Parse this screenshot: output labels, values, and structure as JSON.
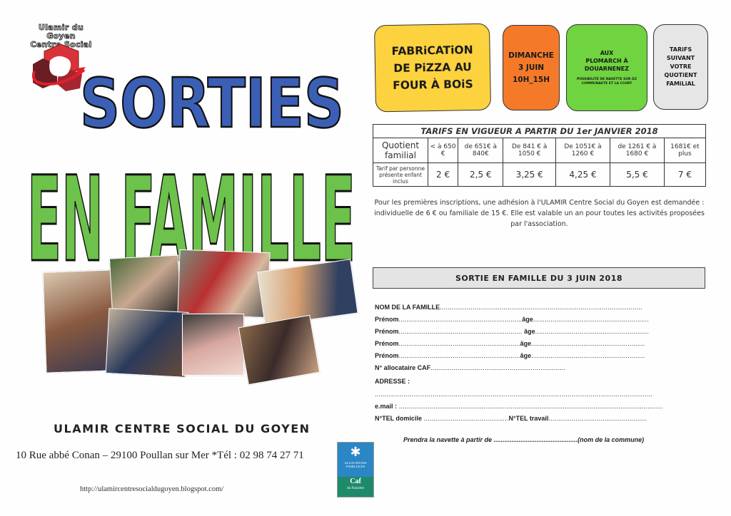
{
  "logo": {
    "line1": "Ulamir du Goyen",
    "line2": "Centre Social"
  },
  "title": {
    "top": "SORTIES",
    "bottom": "EN FAMILLE",
    "top_color": "#3b5fb5",
    "bottom_color": "#6cc24a"
  },
  "boxes": [
    {
      "lines": [
        "FABRiCATiON",
        "DE PiZZA AU",
        "FOUR À BOiS"
      ],
      "color": "#fdd23f"
    },
    {
      "lines": [
        "DIMANCHE",
        "3 JUIN",
        "10H_15H"
      ],
      "color": "#f47a2a"
    },
    {
      "lines": [
        "AUX",
        "PLOMARCH À",
        "DOUARNENEZ"
      ],
      "small": "POSSIBILITÉ DE NAVETTE SUR DZ COMMUNAUTE ET LA CCHPF",
      "color": "#6fd43f"
    },
    {
      "lines": [
        "TARiFS",
        "SUIVANT",
        "VOTRE",
        "QUOTiENT",
        "FAMiLiAL"
      ],
      "color": "#e6e6e6"
    }
  ],
  "tarifs": {
    "title": "TARIFS EN VIGUEUR A PARTIR DU 1er JANVIER 2018",
    "row_header_1": "Quotient familial",
    "row_header_2": "Tarif par personne présente enfant inclus",
    "brackets": [
      "< à 650 €",
      "de 651€ à 840€",
      "De 841 € à 1050 €",
      "De 1051€ à 1260 €",
      "de 1261 € à 1680 €",
      "1681€ et plus"
    ],
    "prices": [
      "2 €",
      "2,5 €",
      "3,25 €",
      "4,25 €",
      "5,5 €",
      "7 €"
    ]
  },
  "note": "Pour les premières inscriptions, une adhésion à l'ULAMIR Centre Social du Goyen est demandée : individuelle de 6 € ou familiale de 15 €. Elle est valable un an pour toutes les activités proposées par l'association.",
  "form": {
    "header": "SORTIE EN FAMILLE DU 3 JUIN 2018",
    "nom": "NOM DE LA FAMILLE",
    "prenom": "Prénom",
    "age": "âge",
    "caf": "N° allocataire CAF",
    "adresse": "ADRESSE :",
    "email": "e.mail :",
    "tel_dom": "N°TEL domicile",
    "tel_trav": "N°TEL travail",
    "navette_a": "Prendra la navette  à partir de",
    "navette_b": "(nom de la commune)"
  },
  "footer": {
    "org": "ULAMIR CENTRE SOCIAL DU GOYEN",
    "address": "10 Rue abbé Conan – 29100 Poullan sur Mer *Tél : 02 98 74 27 71",
    "url": "http://ulamircentresocialdugoyen.blogspot.com/",
    "caf_logo": {
      "line1": "ALLOCATIONS FAMILIALES",
      "line2": "Caf",
      "line3": "du Finistère"
    }
  }
}
